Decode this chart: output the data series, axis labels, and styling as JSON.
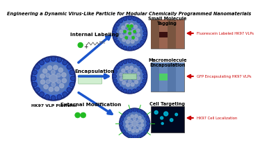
{
  "title": "Engineering a Dynamic Virus-Like Particle for Modular Chemically Programmed Nanomaterials",
  "title_fontsize": 4.8,
  "background_color": "#ffffff",
  "labels": {
    "internal_labeling": "Internal Labeling",
    "encapsulation": "Encapsulation",
    "external_modification": "External Modification",
    "hk97_vlp_platform": "HK97 VLP Platform",
    "small_molecule_tagging": "Small Molecule\nTagging",
    "macromolecule_encapsulation": "Macromolecule\nEncapsulation",
    "cell_targeting": "Cell Targeting",
    "fluorescein_label": "Fluorescein Labeled HK97 VLPs",
    "gfp_label": "GFP Encapsulating HK97 VLPs",
    "hk97_cell": "HK97 Cell Localization"
  },
  "label_fontsize": 5.2,
  "arrow_color": "#1a55cc",
  "arrow_red_color": "#cc0000",
  "vlp_dark": "#1a2a7a",
  "vlp_mid": "#2244aa",
  "vlp_bright": "#3366dd",
  "vlp_spot": "#8899cc",
  "vlp_interior": "#5577bb",
  "vlp_interior_light": "#99aacc",
  "green_bright": "#22bb22",
  "green_dark": "#115511",
  "photo1_bg": "#8a7060",
  "photo1_dark": "#5a3020",
  "photo2_bg": "#6688aa",
  "photo2_green": "#44cc44",
  "photo3_bg": "#000820",
  "photo3_cell": "#00ccee"
}
